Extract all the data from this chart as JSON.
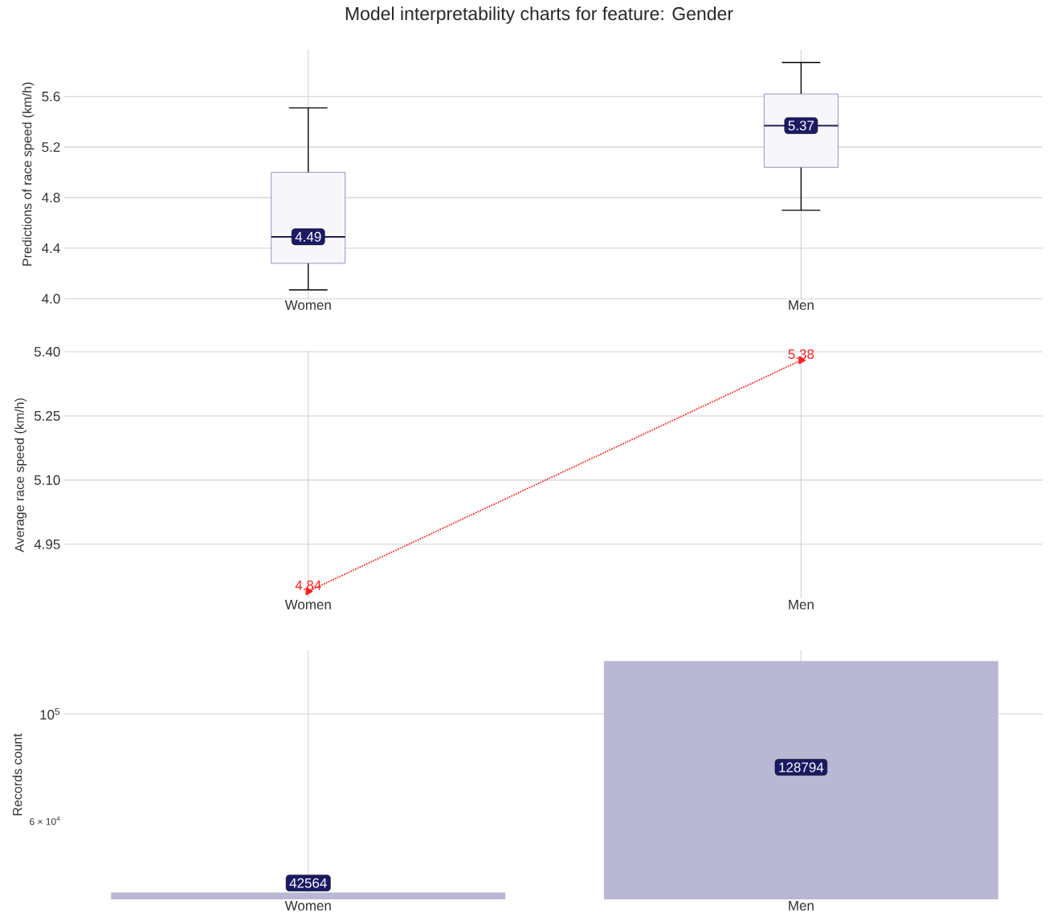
{
  "chart_data": [
    {
      "type": "box",
      "title": "Model interpretability charts for feature: Gender",
      "ylabel": "Predictions of race speed (km/h)",
      "categories": [
        "Women",
        "Men"
      ],
      "series": [
        {
          "color": "#3a3a9a",
          "boxes": [
            {
              "low": 4.07,
              "q1": 4.28,
              "median": 4.49,
              "q3": 5.0,
              "high": 5.51
            },
            {
              "low": 4.7,
              "q1": 5.04,
              "median": 5.37,
              "q3": 5.62,
              "high": 5.87
            }
          ]
        }
      ],
      "ylim": [
        4.0,
        5.97
      ],
      "yticks": [
        {
          "value": 4.0,
          "label": "4.0"
        },
        4.4,
        4.8,
        5.2,
        5.6
      ],
      "grid": true,
      "annotations": [
        {
          "text": "4.49",
          "x": "Women",
          "y": 4.49
        },
        {
          "text": "5.37",
          "x": "Men",
          "y": 5.37
        }
      ]
    },
    {
      "type": "line",
      "ylabel": "Average race speed (km/h)",
      "categories": [
        "Women",
        "Men"
      ],
      "series": [
        {
          "color": "#ff2020",
          "values": [
            4.84,
            5.38
          ]
        }
      ],
      "ylim": [
        4.824,
        5.4
      ],
      "yticks": [
        4.95,
        {
          "value": 5.1,
          "label": "5.10"
        },
        5.25,
        {
          "value": 5.4,
          "label": "5.40"
        }
      ],
      "grid": true,
      "data_labels": true,
      "marker": "triangle",
      "line_style": "dotted"
    },
    {
      "type": "bar",
      "ylabel": "Records count",
      "categories": [
        "Women",
        "Men"
      ],
      "series": [
        {
          "color": "#b8b8d4",
          "values": [
            42564,
            128794
          ]
        }
      ],
      "log": true,
      "ylim": [
        41200,
        135500
      ],
      "yticks": [
        {
          "value": 60000,
          "label": "6 × 10$^{4}$"
        },
        {
          "value": 100000,
          "label": "10$^{5}$"
        }
      ],
      "grid": true,
      "data_labels": true
    }
  ]
}
